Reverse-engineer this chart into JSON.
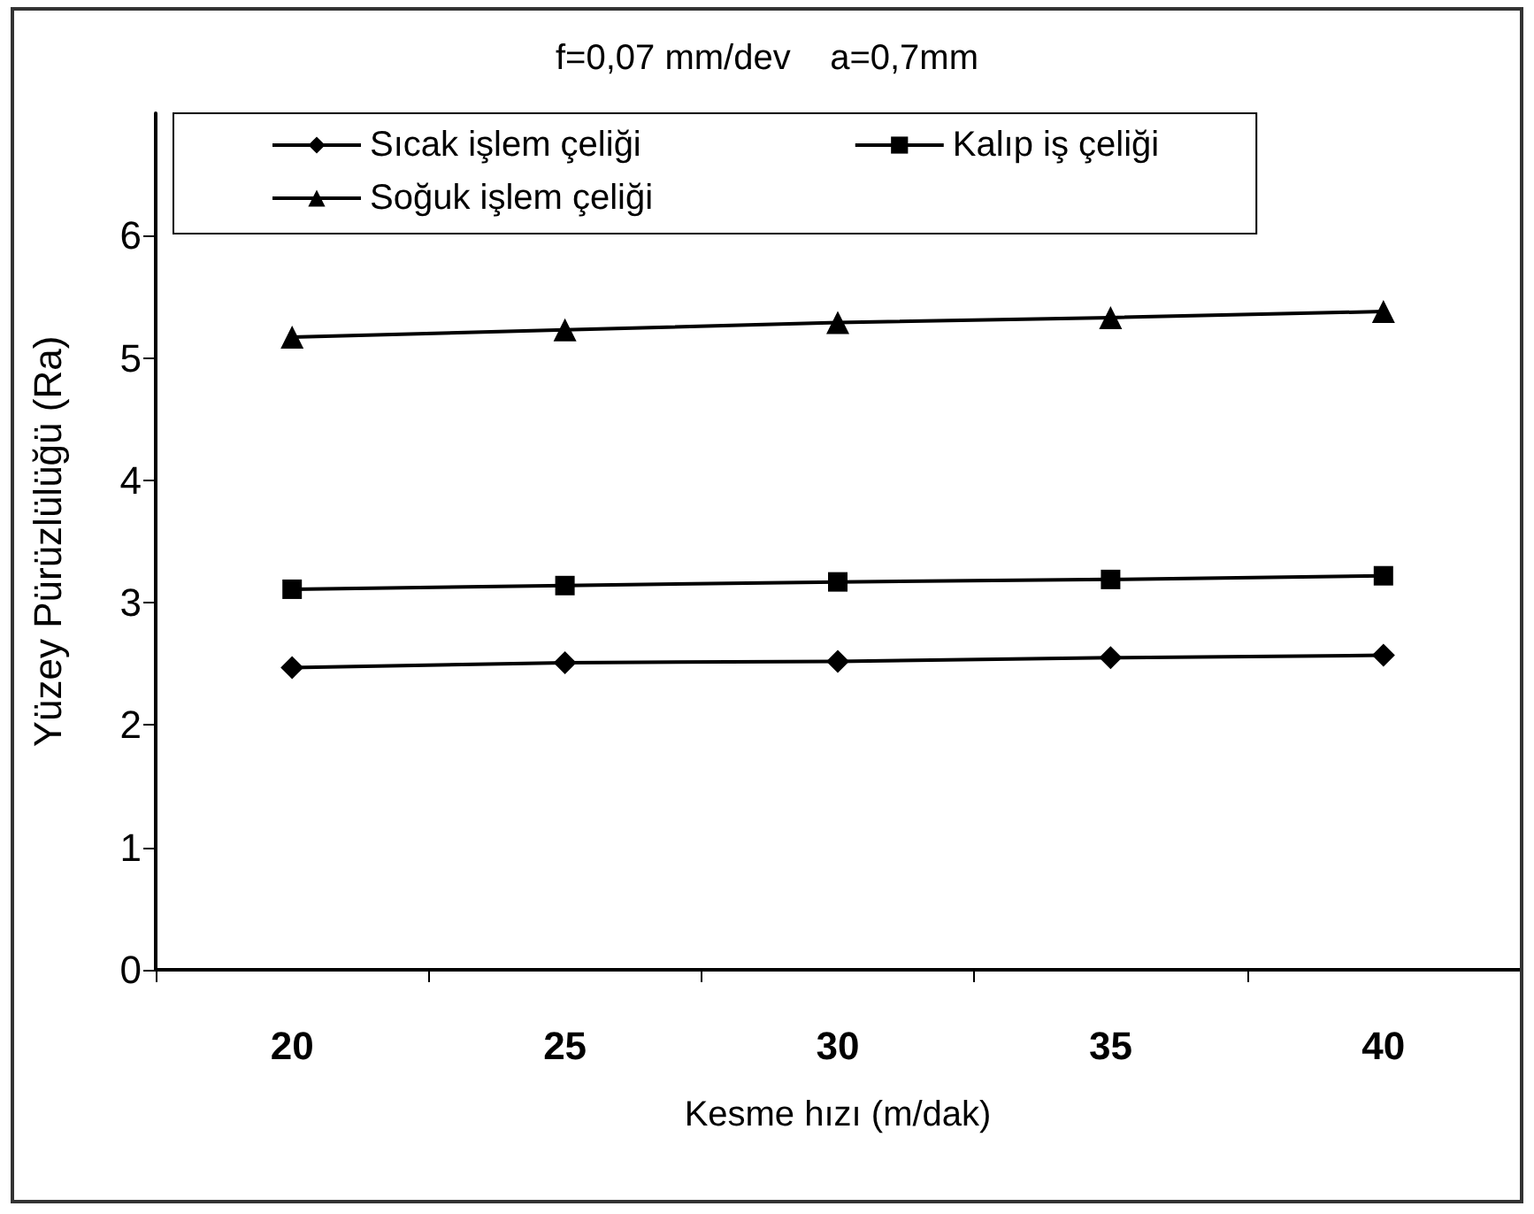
{
  "chart_data": {
    "type": "line",
    "title": "f=0,07 mm/dev    a=0,7mm",
    "xlabel": "Kesme hızı (m/dak)",
    "ylabel": "Yüzey Pürüzlülüğü (Ra)",
    "categories": [
      "20",
      "25",
      "30",
      "35",
      "40"
    ],
    "series": [
      {
        "name": "Sıcak işlem çeliği",
        "color": "#000000",
        "marker": "diamond",
        "values": [
          2.47,
          2.51,
          2.52,
          2.55,
          2.57
        ]
      },
      {
        "name": "Kalıp iş çeliği",
        "color": "#000000",
        "marker": "square",
        "values": [
          3.11,
          3.14,
          3.17,
          3.19,
          3.22
        ]
      },
      {
        "name": "Soğuk işlem çeliği",
        "color": "#000000",
        "marker": "triangle",
        "values": [
          5.17,
          5.23,
          5.29,
          5.33,
          5.38
        ]
      }
    ],
    "ylim": [
      0,
      7
    ],
    "yticks": [
      0,
      1,
      2,
      3,
      4,
      5,
      6
    ],
    "grid": false,
    "legend": "top",
    "line_style": "solid"
  }
}
